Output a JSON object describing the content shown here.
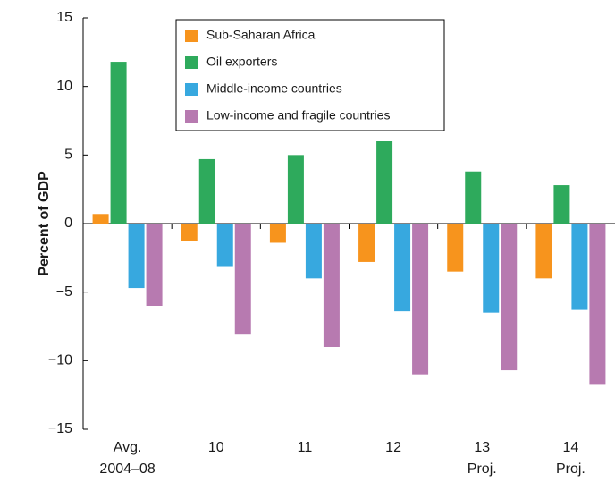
{
  "chart_data": {
    "type": "bar",
    "title": "",
    "xlabel": "",
    "ylabel": "Percent of GDP",
    "ylim": [
      -15,
      15
    ],
    "yticks": [
      15,
      10,
      5,
      0,
      -5,
      -10,
      -15
    ],
    "ytick_labels": [
      "15",
      "10",
      "5",
      "0",
      "−5",
      "−10",
      "−15"
    ],
    "categories": [
      [
        "Avg.",
        "2004–08"
      ],
      [
        "10"
      ],
      [
        "11"
      ],
      [
        "12"
      ],
      [
        "13",
        "Proj."
      ],
      [
        "14",
        "Proj."
      ]
    ],
    "legend_position": "top-center",
    "series": [
      {
        "name": "Sub-Saharan Africa",
        "color": "#f7941d",
        "values": [
          0.7,
          -1.3,
          -1.4,
          -2.8,
          -3.5,
          -4.0
        ]
      },
      {
        "name": "Oil exporters",
        "color": "#2eaa5c",
        "values": [
          11.8,
          4.7,
          5.0,
          6.0,
          3.8,
          2.8
        ]
      },
      {
        "name": "Middle-income countries",
        "color": "#37a8df",
        "values": [
          -4.7,
          -3.1,
          -4.0,
          -6.4,
          -6.5,
          -6.3
        ]
      },
      {
        "name": "Low-income and fragile countries",
        "color": "#b77ab0",
        "values": [
          -6.0,
          -8.1,
          -9.0,
          -11.0,
          -10.7,
          -11.7
        ]
      }
    ]
  }
}
